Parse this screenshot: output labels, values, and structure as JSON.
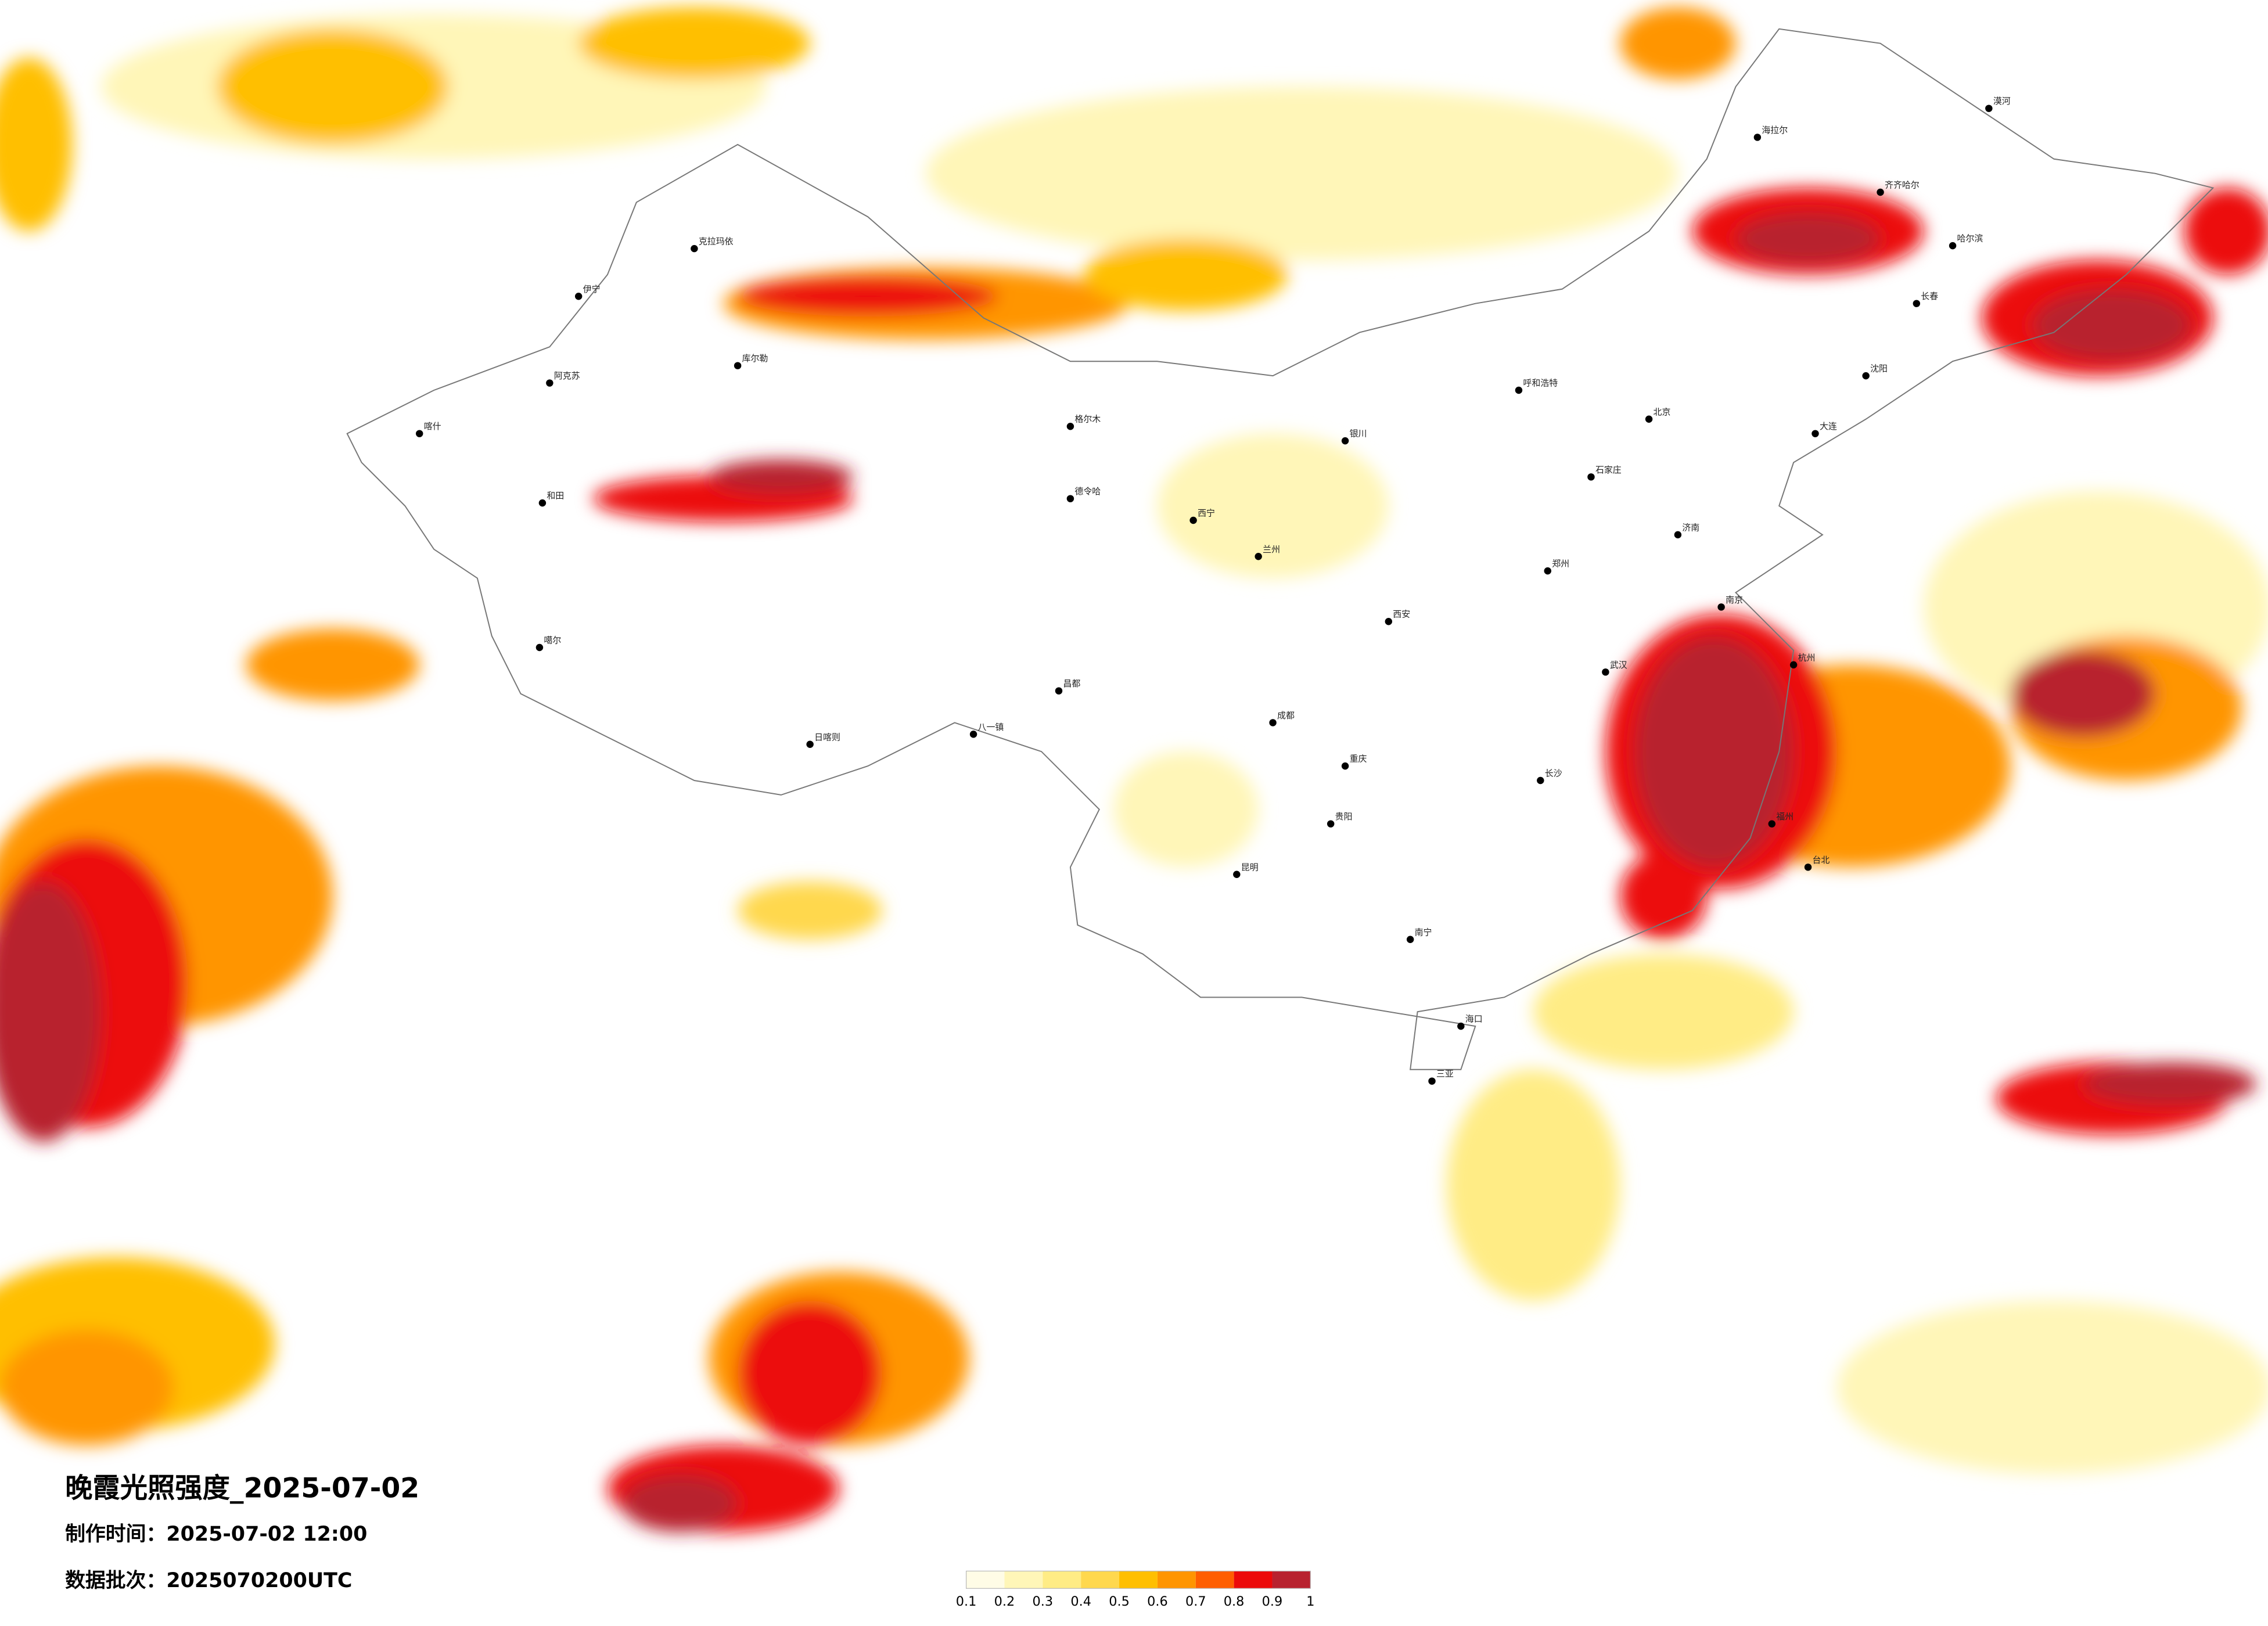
{
  "header": {
    "title": "晚霞光照强度_2025-07-02",
    "made_time": "制作时间：2025-07-02 12:00",
    "batch": "数据批次：2025070200UTC"
  },
  "legend": {
    "ticks": [
      0.1,
      0.2,
      0.3,
      0.4,
      0.5,
      0.6,
      0.7,
      0.8,
      0.9,
      1
    ],
    "colors": [
      "#fffce6",
      "#fff6b8",
      "#ffec85",
      "#ffd84e",
      "#ffbf00",
      "#ff9500",
      "#ff5e00",
      "#ec0a0a",
      "#b8222f"
    ]
  },
  "cities": [
    "伊宁",
    "克拉玛依",
    "库尔勒",
    "阿克苏",
    "喀什",
    "和田",
    "噶尔",
    "日喀则",
    "八一镇",
    "昌都",
    "格尔木",
    "德令哈",
    "西宁",
    "兰州",
    "银川",
    "呼和浩特",
    "北京",
    "石家庄",
    "济南",
    "郑州",
    "西安",
    "成都",
    "重庆",
    "贵阳",
    "昆明",
    "南宁",
    "海口",
    "三亚",
    "长沙",
    "武汉",
    "南京",
    "杭州",
    "福州",
    "台北",
    "哈尔滨",
    "长春",
    "沈阳",
    "大连",
    "齐齐哈尔",
    "漠河",
    "海拉尔"
  ]
}
